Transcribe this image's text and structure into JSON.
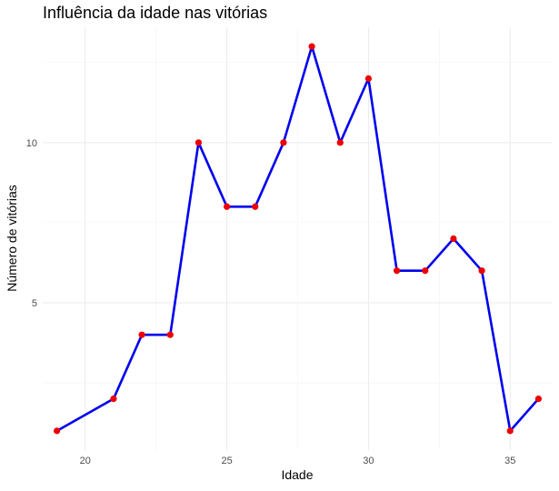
{
  "chart_data": {
    "type": "line",
    "title": "Influência da idade nas vitórias",
    "xlabel": "Idade",
    "ylabel": "Número de vitórias",
    "xlim": [
      18.5,
      36.5
    ],
    "ylim": [
      0.4,
      13.6
    ],
    "x_ticks": [
      20,
      25,
      30,
      35
    ],
    "y_ticks": [
      5,
      10
    ],
    "x_minor": [
      22.5,
      27.5,
      32.5
    ],
    "y_minor": [
      2.5,
      7.5,
      12.5
    ],
    "x_tick_labels": [
      "20",
      "25",
      "30",
      "35"
    ],
    "y_tick_labels": [
      "5",
      "10"
    ],
    "grid": true,
    "line_color": "#0000ee",
    "point_color": "#ee0000",
    "series": [
      {
        "x": [
          19,
          21,
          22,
          23,
          24,
          25,
          26,
          27,
          28,
          29,
          30,
          31,
          32,
          33,
          34,
          35,
          36
        ],
        "y": [
          1,
          2,
          4,
          4,
          10,
          8,
          8,
          10,
          13,
          10,
          12,
          6,
          6,
          7,
          6,
          1,
          2
        ]
      }
    ]
  }
}
